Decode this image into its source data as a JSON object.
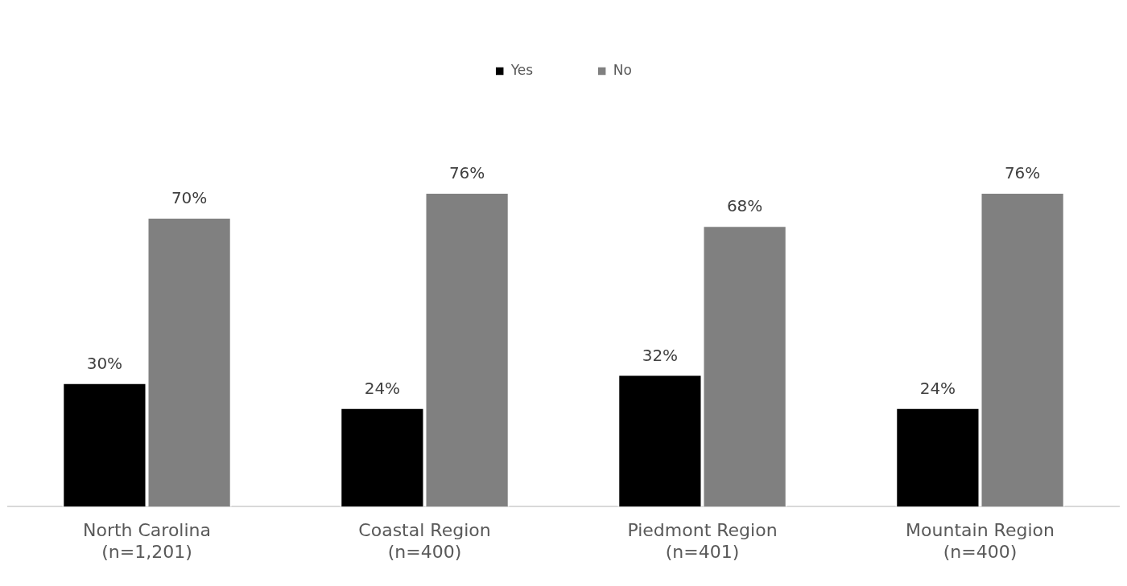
{
  "chart_data": {
    "type": "bar",
    "categories": [
      "North Carolina\n(n=1,201)",
      "Coastal Region\n(n=400)",
      "Piedmont Region\n(n=401)",
      "Mountain Region\n(n=400)"
    ],
    "series": [
      {
        "name": "Yes",
        "color": "#000000",
        "values": [
          30,
          24,
          32,
          24
        ],
        "value_labels": [
          "30%",
          "24%",
          "32%",
          "24%"
        ]
      },
      {
        "name": "No",
        "color": "#808080",
        "values": [
          70,
          76,
          68,
          76
        ],
        "value_labels": [
          "70%",
          "76%",
          "68%",
          "76%"
        ]
      }
    ],
    "legend": "top",
    "grid": false
  }
}
